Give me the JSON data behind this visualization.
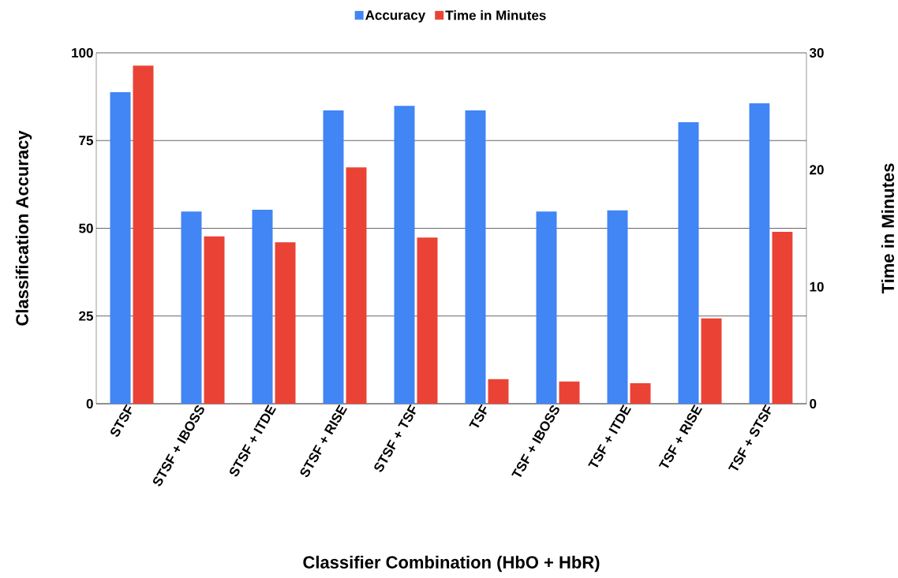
{
  "chart_data": {
    "type": "bar",
    "xlabel": "Classifier Combination (HbO + HbR)",
    "ylabel": "Classification Accuracy",
    "y2label": "Time in Minutes",
    "categories": [
      "STSF",
      "STSF + IBOSS",
      "STSF + ITDE",
      "STSF + RISE",
      "STSF + TSF",
      "TSF",
      "TSF + IBOSS",
      "TSF + ITDE",
      "TSF + RISE",
      "TSF + STSF"
    ],
    "series": [
      {
        "name": "Accuracy",
        "color": "#4285f4",
        "values": [
          88.8,
          54.8,
          55.3,
          83.6,
          84.9,
          83.6,
          54.8,
          55.1,
          80.2,
          85.6
        ]
      },
      {
        "name": "Time in Minutes",
        "color": "#ea4335",
        "axis": "y2",
        "values": [
          28.9,
          14.3,
          13.8,
          20.2,
          14.2,
          2.1,
          1.9,
          1.75,
          7.3,
          14.7
        ]
      }
    ],
    "ylim": [
      0,
      100
    ],
    "yticks": [
      0,
      25,
      50,
      75,
      100
    ],
    "y2lim": [
      0,
      30
    ],
    "y2ticks": [
      0,
      10,
      20,
      30
    ],
    "grid": "y",
    "legend": "top"
  }
}
